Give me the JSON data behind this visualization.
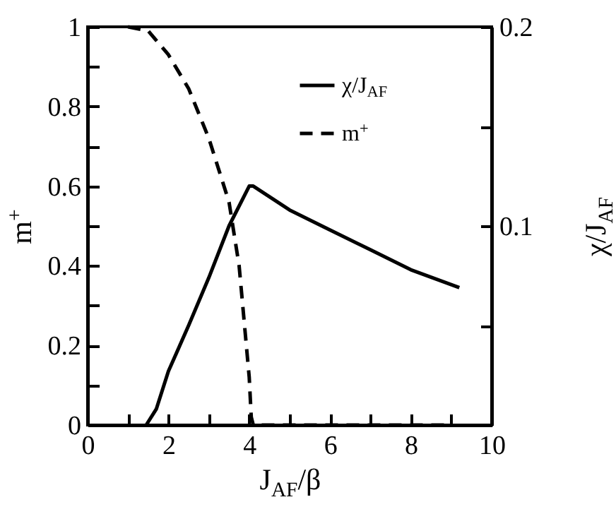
{
  "chart_data": {
    "type": "line",
    "xlabel": "J$_{AF}$/β",
    "ylabel": "m$^{+}$",
    "y2label": "χ/J$_{AF}$",
    "xlim": [
      0,
      10
    ],
    "xticks": [
      0,
      {
        "value": 1,
        "label": null
      },
      2,
      {
        "value": 3,
        "label": null
      },
      4,
      {
        "value": 5,
        "label": null
      },
      6,
      {
        "value": 7,
        "label": null
      },
      8,
      {
        "value": 9,
        "label": null
      },
      10
    ],
    "ylim": [
      0,
      1
    ],
    "yticks": [
      0,
      {
        "value": 0.1,
        "label": null
      },
      0.2,
      {
        "value": 0.3,
        "label": null
      },
      0.4,
      {
        "value": 0.5,
        "label": null
      },
      0.6,
      {
        "value": 0.7,
        "label": null
      },
      0.8,
      {
        "value": 0.9,
        "label": null
      },
      1
    ],
    "y2lim": [
      0,
      0.2
    ],
    "y2ticks": [
      {
        "value": 0.05,
        "label": null
      },
      0.1,
      {
        "value": 0.15,
        "label": null
      },
      0.2
    ],
    "grid": false,
    "legend": "top right",
    "marker": "none",
    "series": [
      {
        "name": "χ/J$_{AF}$",
        "color": "#000000",
        "axis": "y2",
        "line_style": "solid",
        "x": [
          1.45,
          1.7,
          2,
          2.5,
          3,
          3.5,
          4,
          4.1,
          5,
          6,
          7,
          8,
          9.2
        ],
        "values": [
          0,
          0.008,
          0.027,
          0.05,
          0.074,
          0.1,
          0.12,
          0.12,
          0.108,
          0.098,
          0.088,
          0.078,
          0.069
        ]
      },
      {
        "name": "m$^{+}$",
        "color": "#000000",
        "line_style": "dashed",
        "x": [
          1,
          1.5,
          2,
          2.5,
          3,
          3.5,
          3.75,
          4,
          4.05,
          4.1,
          9
        ],
        "values": [
          1,
          0.99,
          0.93,
          0.845,
          0.72,
          0.56,
          0.4,
          0.12,
          0.02,
          0,
          0
        ]
      }
    ]
  }
}
